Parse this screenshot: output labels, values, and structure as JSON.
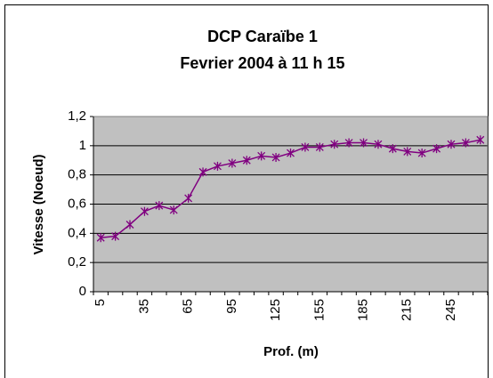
{
  "chart_data": {
    "type": "line",
    "title": "DCP Caraïbe 1",
    "subtitle": "Fevrier 2004 à 11 h 15",
    "x_label": "Prof. (m)",
    "y_label": "Vitesse (Noeud)",
    "categories": [
      "5",
      null,
      null,
      "35",
      null,
      null,
      "65",
      null,
      null,
      "95",
      null,
      null,
      "125",
      null,
      null,
      "155",
      null,
      null,
      "185",
      null,
      null,
      "215",
      null,
      null,
      "245",
      null,
      null
    ],
    "series": [
      {
        "name": "Vitesse",
        "color": "#800080",
        "values": [
          0.37,
          0.38,
          0.46,
          0.55,
          0.59,
          0.56,
          0.64,
          0.82,
          0.86,
          0.88,
          0.9,
          0.93,
          0.92,
          0.95,
          0.99,
          0.99,
          1.01,
          1.02,
          1.02,
          1.01,
          0.98,
          0.96,
          0.95,
          0.98,
          1.01,
          1.02,
          1.04
        ]
      }
    ],
    "ylim": [
      0,
      1.2
    ],
    "yticks": [
      0,
      {
        "value": 0.2,
        "label": "0,2"
      },
      {
        "value": 0.4,
        "label": "0,4"
      },
      {
        "value": 0.6,
        "label": "0,6"
      },
      {
        "value": 0.8,
        "label": "0,8"
      },
      1,
      {
        "value": 1.2,
        "label": "1,2"
      }
    ],
    "grid": true,
    "plot_background": "#c0c0c0"
  }
}
